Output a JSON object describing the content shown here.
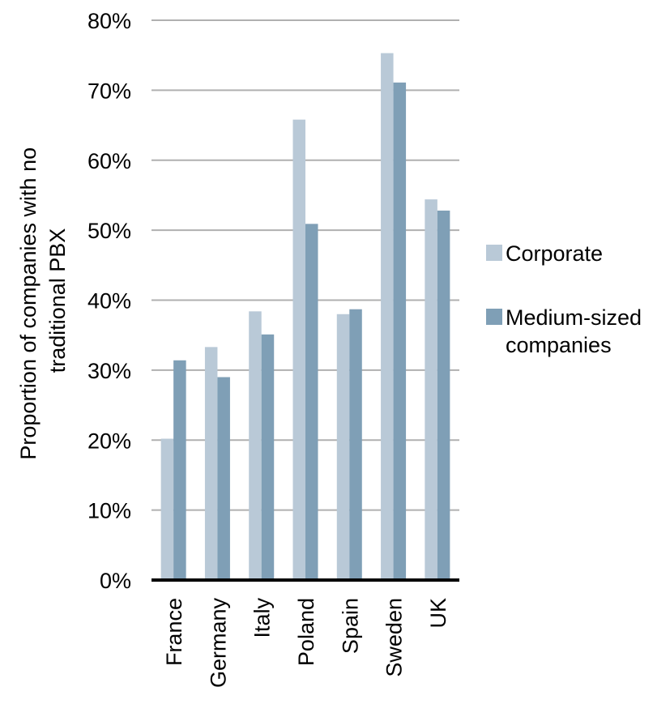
{
  "chart_data": {
    "type": "bar",
    "title": "",
    "xlabel": "",
    "ylabel_lines": [
      "Proportion of companies with no",
      "traditional PBX"
    ],
    "categories": [
      "France",
      "Germany",
      "Italy",
      "Poland",
      "Spain",
      "Sweden",
      "UK"
    ],
    "series": [
      {
        "name": "Corporate",
        "color": "#b9c9d7",
        "values": [
          20.2,
          33.3,
          38.4,
          65.8,
          38.0,
          75.3,
          54.4
        ]
      },
      {
        "name": "Medium-sized companies",
        "color": "#7f9fb6",
        "values": [
          31.4,
          29.0,
          35.1,
          50.9,
          38.7,
          71.1,
          52.8
        ]
      }
    ],
    "legend_lines": [
      [
        "Corporate"
      ],
      [
        "Medium-sized",
        "companies"
      ]
    ],
    "ylim": [
      0,
      80
    ],
    "yticks": [
      0,
      10,
      20,
      30,
      40,
      50,
      60,
      70,
      80
    ],
    "ytick_labels": [
      "0%",
      "10%",
      "20%",
      "30%",
      "40%",
      "50%",
      "60%",
      "70%",
      "80%"
    ],
    "grid": true,
    "legend_position": "right",
    "gridline_color": "#b0b0b0",
    "baseline_color": "#000000"
  }
}
